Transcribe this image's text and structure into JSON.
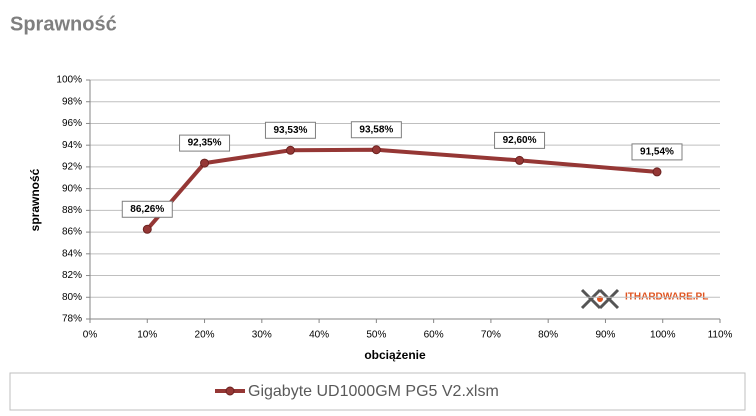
{
  "chart_data": {
    "type": "line",
    "title": "Sprawność",
    "x_label": "obciążenie",
    "y_label": "sprawność",
    "x": [
      10,
      20,
      35,
      50,
      75,
      99
    ],
    "series": [
      {
        "name": "Gigabyte UD1000GM PG5 V2.xlsm",
        "color": "#953735",
        "values": [
          86.26,
          92.35,
          93.53,
          93.58,
          92.6,
          91.54
        ],
        "value_labels": [
          "86,26%",
          "92,35%",
          "93,53%",
          "93,58%",
          "92,60%",
          "91,54%"
        ]
      }
    ],
    "xlim": [
      0,
      110
    ],
    "xticks": [
      {
        "value": 0,
        "label": "0%"
      },
      {
        "value": 10,
        "label": "10%"
      },
      {
        "value": 20,
        "label": "20%"
      },
      {
        "value": 30,
        "label": "30%"
      },
      {
        "value": 40,
        "label": "40%"
      },
      {
        "value": 50,
        "label": "50%"
      },
      {
        "value": 60,
        "label": "60%"
      },
      {
        "value": 70,
        "label": "70%"
      },
      {
        "value": 80,
        "label": "80%"
      },
      {
        "value": 90,
        "label": "90%"
      },
      {
        "value": 100,
        "label": "100%"
      },
      {
        "value": 110,
        "label": "110%"
      }
    ],
    "ylim": [
      78,
      100
    ],
    "yticks": [
      {
        "value": 78,
        "label": "78%"
      },
      {
        "value": 80,
        "label": "80%"
      },
      {
        "value": 82,
        "label": "82%"
      },
      {
        "value": 84,
        "label": "84%"
      },
      {
        "value": 86,
        "label": "86%"
      },
      {
        "value": 88,
        "label": "88%"
      },
      {
        "value": 90,
        "label": "90%"
      },
      {
        "value": 92,
        "label": "92%"
      },
      {
        "value": 94,
        "label": "94%"
      },
      {
        "value": 96,
        "label": "96%"
      },
      {
        "value": 98,
        "label": "98%"
      },
      {
        "value": 100,
        "label": "100%"
      }
    ],
    "grid": true,
    "watermark": "ITHARDWARE.PL"
  }
}
